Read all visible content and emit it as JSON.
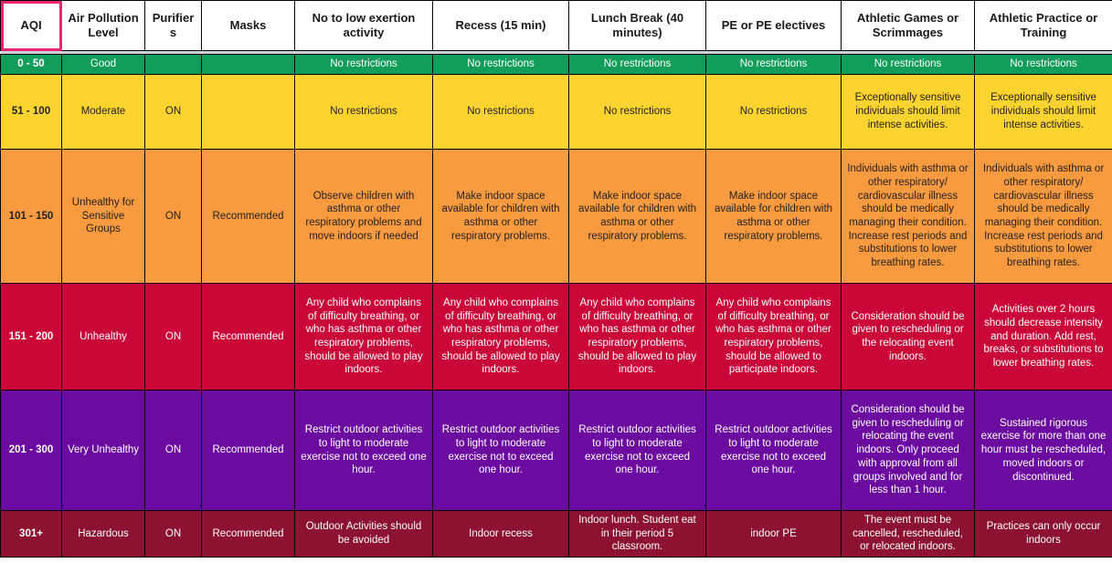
{
  "selection": {
    "color": "#F02571",
    "target": "AQI"
  },
  "header": {
    "labels": [
      "AQI",
      "Air Pollution Level",
      "Purifiers",
      "Masks",
      "No to low exertion activity",
      "Recess (15 min)",
      "Lunch Break (40 minutes)",
      "PE or PE electives",
      "Athletic Games or Scrimmages",
      "Athletic Practice or Training"
    ]
  },
  "rows": [
    {
      "bg": "#129D5B",
      "fg": "#FFFFFF",
      "cells": [
        "0 - 50",
        "Good",
        "",
        "",
        "No restrictions",
        "No restrictions",
        "No restrictions",
        "No restrictions",
        "No restrictions",
        "No restrictions"
      ]
    },
    {
      "bg": "#FDD32F",
      "fg": "#222222",
      "cells": [
        "51 - 100",
        "Moderate",
        "ON",
        "",
        "No restrictions",
        "No restrictions",
        "No restrictions",
        "No restrictions",
        "Exceptionally sensitive individuals should limit intense activities.",
        "Exceptionally sensitive individuals should limit intense activities."
      ]
    },
    {
      "bg": "#F79A40",
      "fg": "#242220",
      "cells": [
        "101 - 150",
        "Unhealthy for Sensitive Groups",
        "ON",
        "Recommended",
        "Observe children with asthma or other respiratory problems and move indoors if needed",
        "Make indoor space available for children with asthma or other respiratory problems.",
        "Make indoor space available for children with asthma or other respiratory problems.",
        "Make indoor space available for children with asthma or other respiratory problems.",
        "Individuals with asthma or other respiratory/ cardiovascular illness should be medically managing their condition. Increase rest periods and substitutions to lower breathing rates.",
        "Individuals with asthma or other respiratory/ cardiovascular illness should be medically managing their condition. Increase rest periods and substitutions to lower breathing rates."
      ]
    },
    {
      "bg": "#CA0538",
      "fg": "#FFFFFF",
      "cells": [
        "151 - 200",
        "Unhealthy",
        "ON",
        "Recommended",
        "Any child who complains of difficulty breathing, or who has asthma or other respiratory problems, should be allowed to play indoors.",
        "Any child who complains of difficulty breathing, or who has asthma or other respiratory problems, should be allowed to play indoors.",
        "Any child who complains of difficulty breathing, or who has asthma or other respiratory problems, should be allowed to play indoors.",
        "Any child who complains of difficulty breathing, or who has asthma or other respiratory problems, should be allowed to participate indoors.",
        "Consideration should be given to rescheduling or the relocating event indoors.",
        "Activities over 2 hours should decrease intensity and duration. Add rest, breaks, or substitutions to lower breathing rates."
      ]
    },
    {
      "bg": "#6B0BA0",
      "fg": "#FFFFFF",
      "cells": [
        "201 - 300",
        "Very Unhealthy",
        "ON",
        "Recommended",
        "Restrict outdoor activities to light to moderate exercise not to exceed one hour.",
        "Restrict outdoor activities to light to moderate exercise not to exceed one hour.",
        "Restrict outdoor activities to light to moderate exercise not to exceed one hour.",
        "Restrict outdoor activities to light to moderate exercise not to exceed one hour.",
        "Consideration should be given to rescheduling or relocating the event indoors. Only proceed with approval from all groups involved and for less than 1 hour.",
        "Sustained rigorous exercise for more than one hour must be rescheduled, moved indoors or discontinued."
      ]
    },
    {
      "bg": "#8C122F",
      "fg": "#FFFFFF",
      "cells": [
        "301+",
        "Hazardous",
        "ON",
        "Recommended",
        "Outdoor Activities should be avoided",
        "Indoor recess",
        "Indoor lunch. Student eat in their period 5 classroom.",
        "indoor PE",
        "The event must be cancelled, rescheduled, or relocated indoors.",
        "Practices can only occur indoors"
      ]
    }
  ]
}
